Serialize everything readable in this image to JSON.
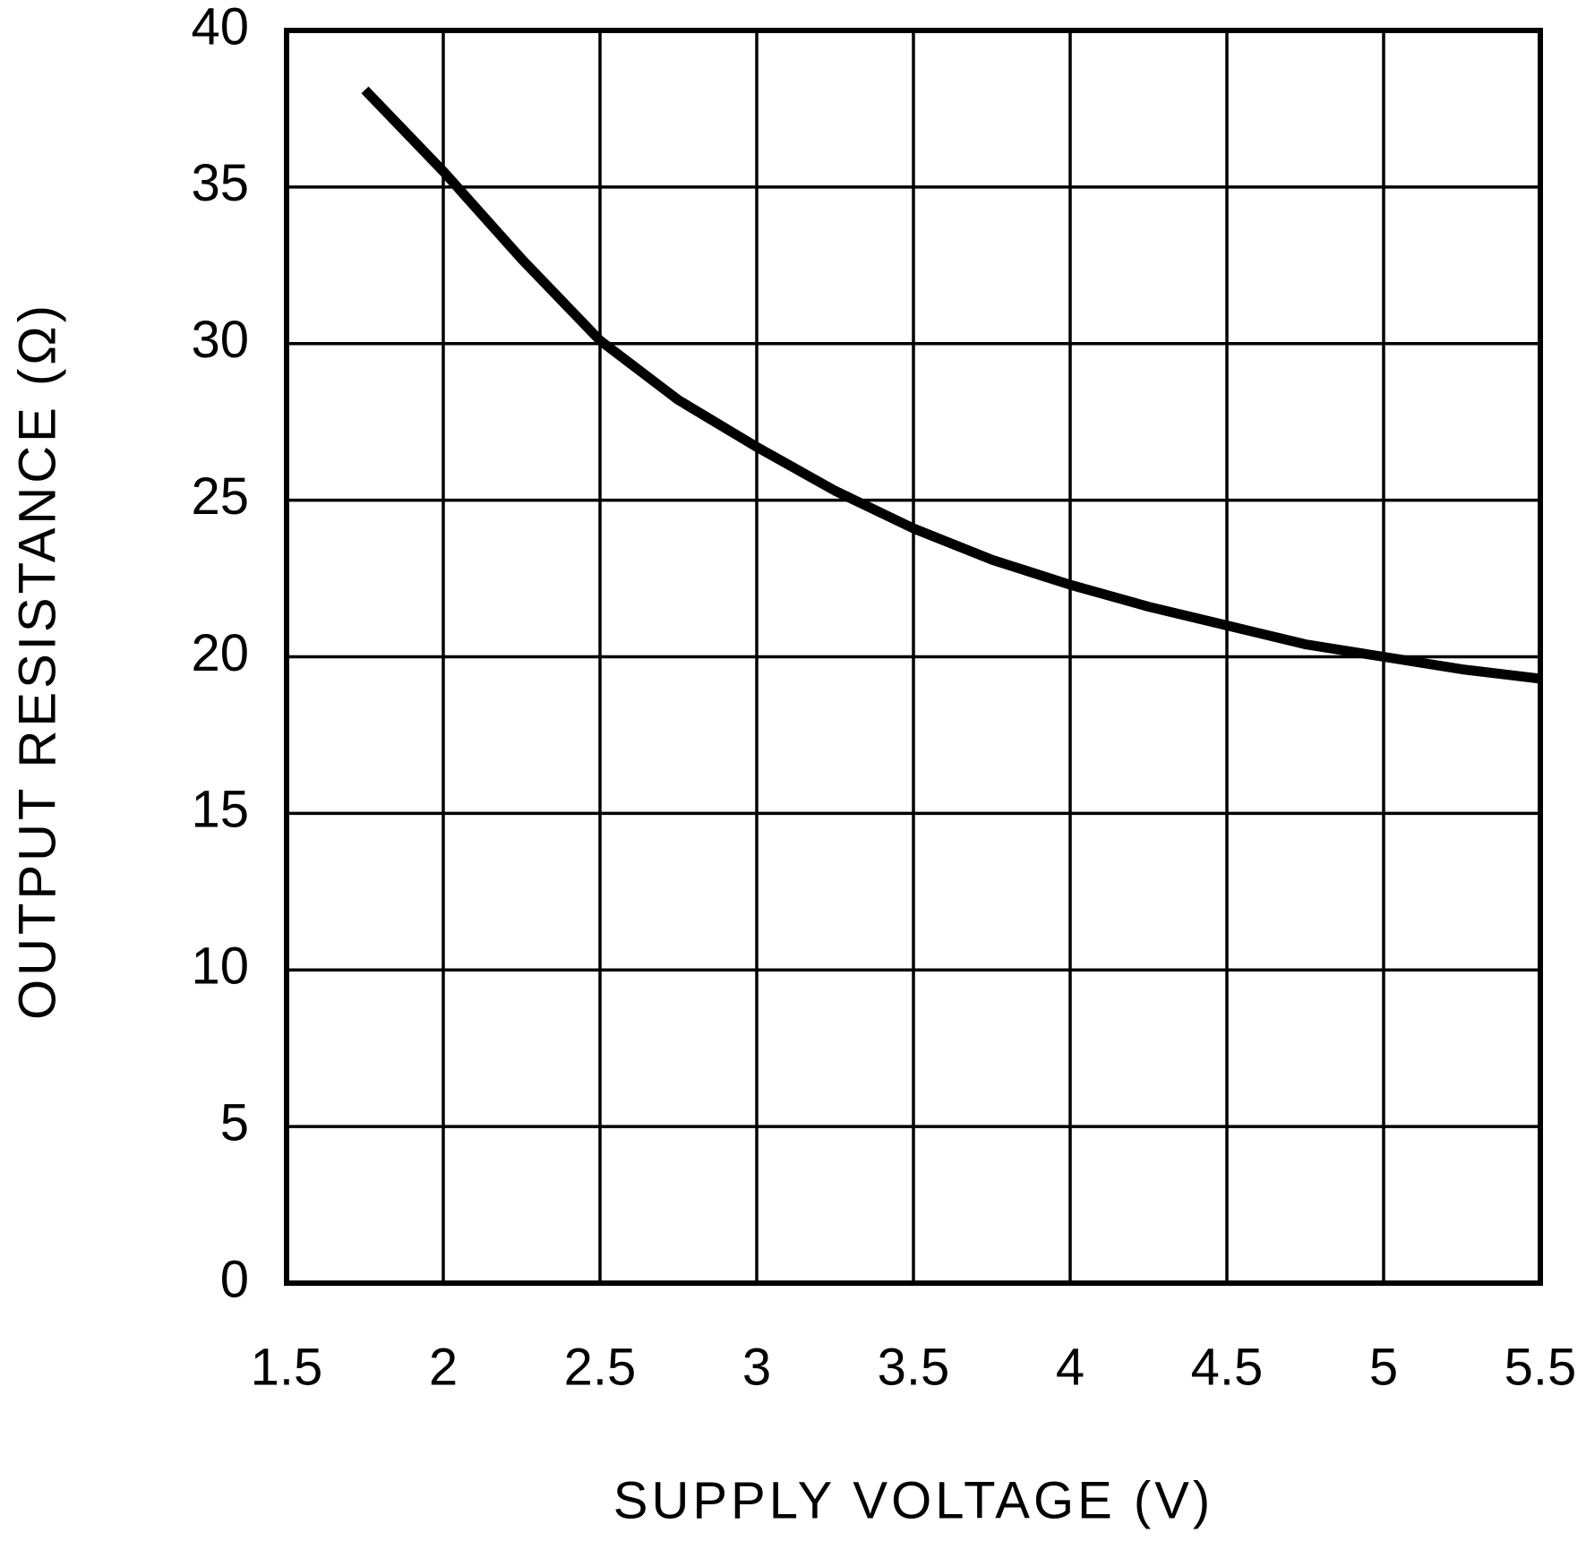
{
  "chart_data": {
    "type": "line",
    "x_label": "SUPPLY VOLTAGE (V)",
    "y_label": "OUTPUT RESISTANCE (Ω)",
    "x": [
      1.75,
      2,
      2.25,
      2.5,
      2.75,
      3,
      3.25,
      3.5,
      3.75,
      4,
      4.25,
      4.5,
      4.75,
      5,
      5.25,
      5.5
    ],
    "series": [
      {
        "color": "#000000",
        "values": [
          38.1,
          35.5,
          32.7,
          30.1,
          28.2,
          26.7,
          25.3,
          24.1,
          23.1,
          22.3,
          21.6,
          21.0,
          20.4,
          20.0,
          19.6,
          19.3
        ]
      }
    ],
    "xlim": [
      1.5,
      5.5
    ],
    "xticks": [
      1.5,
      2,
      2.5,
      3,
      3.5,
      4,
      4.5,
      5,
      5.5
    ],
    "ylim": [
      0,
      40
    ],
    "yticks": [
      0,
      5,
      10,
      15,
      20,
      25,
      30,
      35,
      40
    ],
    "grid": true
  }
}
